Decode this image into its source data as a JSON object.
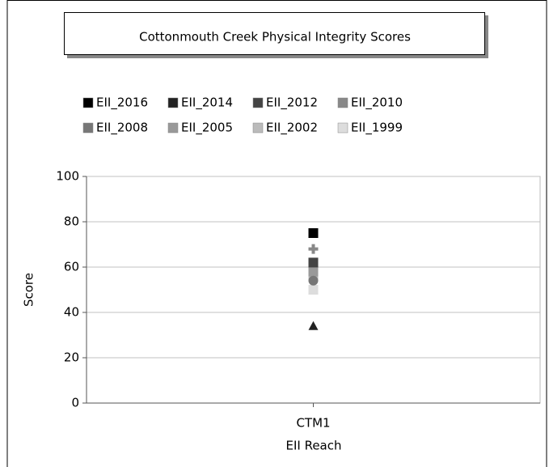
{
  "chart_data": {
    "type": "scatter",
    "title": "Cottonmouth Creek Physical Integrity Scores",
    "xlabel": "EII Reach",
    "ylabel": "Score",
    "categories": [
      "CTM1"
    ],
    "ylim": [
      0,
      100
    ],
    "yticks": [
      0,
      20,
      40,
      60,
      80,
      100
    ],
    "grid": true,
    "series": [
      {
        "name": "EII_2016",
        "color": "#000000",
        "marker": "square",
        "values": [
          75
        ]
      },
      {
        "name": "EII_2014",
        "color": "#222222",
        "marker": "triangle",
        "values": [
          34
        ]
      },
      {
        "name": "EII_2012",
        "color": "#444444",
        "marker": "square",
        "values": [
          62
        ]
      },
      {
        "name": "EII_2010",
        "color": "#888888",
        "marker": "cross",
        "values": [
          68
        ]
      },
      {
        "name": "EII_2008",
        "color": "#777777",
        "marker": "circle",
        "values": [
          54
        ]
      },
      {
        "name": "EII_2005",
        "color": "#999999",
        "marker": "square",
        "values": [
          58
        ]
      },
      {
        "name": "EII_2002",
        "color": "#bbbbbb",
        "marker": "square",
        "values": [
          56
        ]
      },
      {
        "name": "EII_1999",
        "color": "#dddddd",
        "marker": "square",
        "values": [
          50
        ]
      }
    ]
  }
}
